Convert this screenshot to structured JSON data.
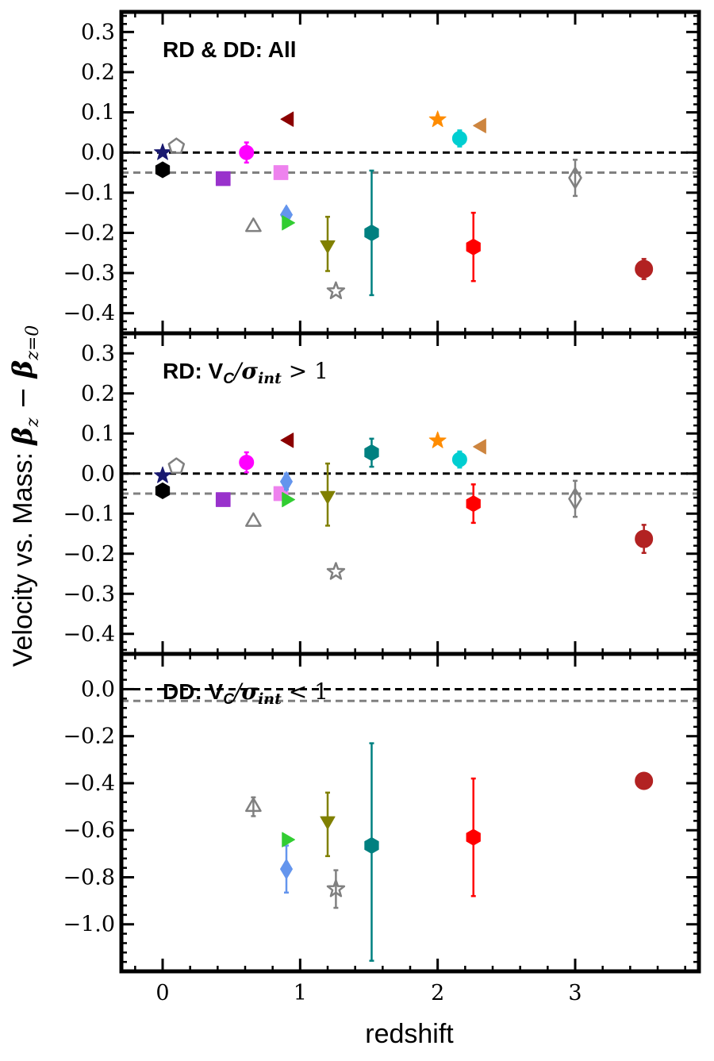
{
  "chart_data": {
    "type": "scatter",
    "xlabel": "redshift",
    "ylabel": "Velocity vs. Mass: β_z − β_{z=0}",
    "xlim": [
      -0.3,
      3.9
    ],
    "xticks": [
      0,
      1,
      2,
      3
    ],
    "xtick_labels": [
      "0",
      "1",
      "2",
      "3"
    ],
    "reference_lines": [
      {
        "y": 0.0,
        "color": "#000000",
        "style": "dashed"
      },
      {
        "y": -0.05,
        "color": "#808080",
        "style": "dashed"
      }
    ],
    "panels": [
      {
        "title_parts": [
          "RD & DD: All"
        ],
        "ylim": [
          -0.45,
          0.35
        ],
        "yticks": [
          0.3,
          0.2,
          0.1,
          0.0,
          -0.1,
          -0.2,
          -0.3,
          -0.4
        ],
        "ytick_labels": [
          "0.3",
          "0.2",
          "0.1",
          "0.0",
          "−0.1",
          "−0.2",
          "−0.3",
          "−0.4"
        ],
        "points": [
          {
            "x": 0.0,
            "y": -0.043,
            "marker": "hexagon",
            "color": "#000000",
            "filled": true
          },
          {
            "x": 0.0,
            "y": 0.0,
            "marker": "star",
            "color": "#191970",
            "filled": true
          },
          {
            "x": 0.1,
            "y": 0.015,
            "marker": "pentagon",
            "color": "#808080",
            "filled": false
          },
          {
            "x": 0.44,
            "y": -0.065,
            "marker": "square",
            "color": "#9932CC",
            "filled": true
          },
          {
            "x": 0.61,
            "y": 0.0,
            "marker": "circle",
            "color": "#FF00FF",
            "filled": true,
            "err": 0.025
          },
          {
            "x": 0.66,
            "y": -0.185,
            "marker": "triangle-up",
            "color": "#808080",
            "filled": false
          },
          {
            "x": 0.86,
            "y": -0.05,
            "marker": "square",
            "color": "#EE82EE",
            "filled": true
          },
          {
            "x": 0.9,
            "y": -0.155,
            "marker": "diamond",
            "color": "#6495ED",
            "filled": true
          },
          {
            "x": 0.9,
            "y": -0.175,
            "marker": "triangle-right",
            "color": "#32CD32",
            "filled": true
          },
          {
            "x": 0.92,
            "y": 0.083,
            "marker": "triangle-left",
            "color": "#8B0000",
            "filled": true
          },
          {
            "x": 1.2,
            "y": -0.23,
            "marker": "triangle-down",
            "color": "#808000",
            "filled": true,
            "err_up": 0.07,
            "err_down": 0.065
          },
          {
            "x": 1.26,
            "y": -0.345,
            "marker": "star",
            "color": "#808080",
            "filled": false
          },
          {
            "x": 1.52,
            "y": -0.2,
            "marker": "hexagon",
            "color": "#008080",
            "filled": true,
            "err": 0.155
          },
          {
            "x": 2.0,
            "y": 0.082,
            "marker": "star",
            "color": "#FF8C00",
            "filled": true
          },
          {
            "x": 2.16,
            "y": 0.035,
            "marker": "circle",
            "color": "#00CED1",
            "filled": true,
            "err": 0.02
          },
          {
            "x": 2.26,
            "y": -0.235,
            "marker": "hexagon",
            "color": "#FF0000",
            "filled": true,
            "err": 0.085
          },
          {
            "x": 2.32,
            "y": 0.067,
            "marker": "triangle-left",
            "color": "#CD853F",
            "filled": true
          },
          {
            "x": 3.0,
            "y": -0.063,
            "marker": "diamond",
            "color": "#808080",
            "filled": false,
            "err": 0.045
          },
          {
            "x": 3.5,
            "y": -0.29,
            "marker": "circle",
            "color": "#B22222",
            "filled": true,
            "err": 0.025
          }
        ]
      },
      {
        "title_parts": [
          "RD: V",
          "C",
          "/",
          "σ",
          "int",
          " > 1"
        ],
        "ylim": [
          -0.45,
          0.35
        ],
        "yticks": [
          0.3,
          0.2,
          0.1,
          0.0,
          -0.1,
          -0.2,
          -0.3,
          -0.4
        ],
        "ytick_labels": [
          "0.3",
          "0.2",
          "0.1",
          "0.0",
          "−0.1",
          "−0.2",
          "−0.3",
          "−0.4"
        ],
        "points": [
          {
            "x": 0.0,
            "y": -0.043,
            "marker": "hexagon",
            "color": "#000000",
            "filled": true
          },
          {
            "x": 0.0,
            "y": -0.005,
            "marker": "star",
            "color": "#191970",
            "filled": true
          },
          {
            "x": 0.1,
            "y": 0.018,
            "marker": "pentagon",
            "color": "#808080",
            "filled": false
          },
          {
            "x": 0.44,
            "y": -0.065,
            "marker": "square",
            "color": "#9932CC",
            "filled": true
          },
          {
            "x": 0.61,
            "y": 0.028,
            "marker": "circle",
            "color": "#FF00FF",
            "filled": true,
            "err": 0.025
          },
          {
            "x": 0.66,
            "y": -0.12,
            "marker": "triangle-up",
            "color": "#808080",
            "filled": false
          },
          {
            "x": 0.86,
            "y": -0.05,
            "marker": "square",
            "color": "#EE82EE",
            "filled": true
          },
          {
            "x": 0.9,
            "y": -0.02,
            "marker": "diamond",
            "color": "#6495ED",
            "filled": true,
            "err": 0.02
          },
          {
            "x": 0.9,
            "y": -0.065,
            "marker": "triangle-right",
            "color": "#32CD32",
            "filled": true
          },
          {
            "x": 0.92,
            "y": 0.083,
            "marker": "triangle-left",
            "color": "#8B0000",
            "filled": true
          },
          {
            "x": 1.2,
            "y": -0.055,
            "marker": "triangle-down",
            "color": "#808000",
            "filled": true,
            "err_up": 0.08,
            "err_down": 0.075
          },
          {
            "x": 1.26,
            "y": -0.245,
            "marker": "star",
            "color": "#808080",
            "filled": false
          },
          {
            "x": 1.52,
            "y": 0.052,
            "marker": "hexagon",
            "color": "#008080",
            "filled": true,
            "err": 0.035
          },
          {
            "x": 2.0,
            "y": 0.082,
            "marker": "star",
            "color": "#FF8C00",
            "filled": true
          },
          {
            "x": 2.16,
            "y": 0.035,
            "marker": "circle",
            "color": "#00CED1",
            "filled": true,
            "err": 0.02
          },
          {
            "x": 2.26,
            "y": -0.075,
            "marker": "hexagon",
            "color": "#FF0000",
            "filled": true,
            "err": 0.048
          },
          {
            "x": 2.32,
            "y": 0.067,
            "marker": "triangle-left",
            "color": "#CD853F",
            "filled": true
          },
          {
            "x": 3.0,
            "y": -0.063,
            "marker": "diamond",
            "color": "#808080",
            "filled": false,
            "err": 0.045
          },
          {
            "x": 3.5,
            "y": -0.163,
            "marker": "circle",
            "color": "#B22222",
            "filled": true,
            "err": 0.035
          }
        ]
      },
      {
        "title_parts": [
          "DD: V",
          "C",
          "/",
          "σ",
          "int",
          " < 1"
        ],
        "ylim": [
          -1.2,
          0.15
        ],
        "yticks": [
          0.0,
          -0.2,
          -0.4,
          -0.6,
          -0.8,
          -1.0
        ],
        "ytick_labels": [
          "0.0",
          "−0.2",
          "−0.4",
          "−0.6",
          "−0.8",
          "−1.0"
        ],
        "points": [
          {
            "x": 0.66,
            "y": -0.5,
            "marker": "triangle-up",
            "color": "#808080",
            "filled": false,
            "err": 0.04
          },
          {
            "x": 0.9,
            "y": -0.765,
            "marker": "diamond",
            "color": "#6495ED",
            "filled": true,
            "err": 0.1
          },
          {
            "x": 0.9,
            "y": -0.64,
            "marker": "triangle-right",
            "color": "#32CD32",
            "filled": true
          },
          {
            "x": 1.2,
            "y": -0.56,
            "marker": "triangle-down",
            "color": "#808000",
            "filled": true,
            "err_up": 0.12,
            "err_down": 0.15
          },
          {
            "x": 1.26,
            "y": -0.85,
            "marker": "star",
            "color": "#808080",
            "filled": false,
            "err": 0.08
          },
          {
            "x": 1.52,
            "y": -0.665,
            "marker": "hexagon",
            "color": "#008080",
            "filled": true,
            "err_up": 0.435,
            "err_down": 0.49
          },
          {
            "x": 2.26,
            "y": -0.63,
            "marker": "hexagon",
            "color": "#FF0000",
            "filled": true,
            "err": 0.25
          },
          {
            "x": 3.5,
            "y": -0.39,
            "marker": "circle",
            "color": "#B22222",
            "filled": true,
            "err": 0.03
          }
        ]
      }
    ]
  }
}
